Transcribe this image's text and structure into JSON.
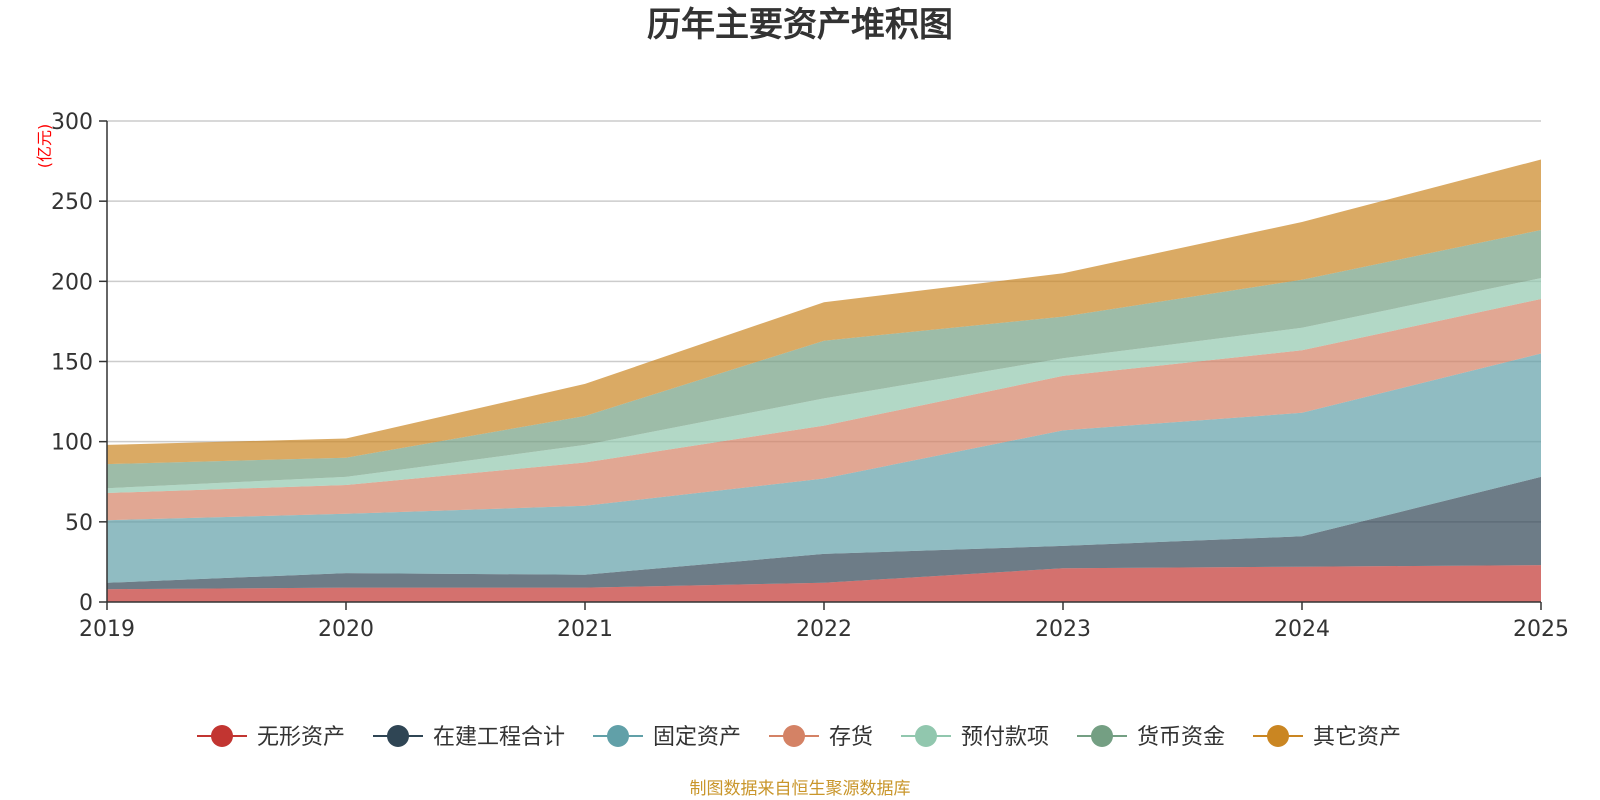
{
  "chart_data": {
    "type": "area",
    "stacked": true,
    "title": "历年主要资产堆积图",
    "ylabel": "(亿元)",
    "xlabel": "",
    "categories": [
      "2019",
      "2020",
      "2021",
      "2022",
      "2023",
      "2024",
      "2025"
    ],
    "ylim": [
      0,
      300
    ],
    "yticks": [
      0,
      50,
      100,
      150,
      200,
      250,
      300
    ],
    "grid": true,
    "legend_position": "bottom",
    "series": [
      {
        "name": "无形资产",
        "color": "#c23531",
        "values": [
          8,
          9,
          9,
          12,
          21,
          22,
          23
        ]
      },
      {
        "name": "在建工程合计",
        "color": "#2f4554",
        "values": [
          4,
          9,
          8,
          18,
          14,
          19,
          55
        ]
      },
      {
        "name": "固定资产",
        "color": "#61a0a8",
        "values": [
          39,
          37,
          43,
          47,
          72,
          77,
          77
        ]
      },
      {
        "name": "存货",
        "color": "#d48265",
        "values": [
          17,
          18,
          27,
          33,
          34,
          39,
          34
        ]
      },
      {
        "name": "预付款项",
        "color": "#91c7ae",
        "values": [
          3,
          5,
          11,
          17,
          11,
          14,
          13
        ]
      },
      {
        "name": "货币资金",
        "color": "#749f83",
        "values": [
          15,
          12,
          18,
          36,
          26,
          30,
          30
        ]
      },
      {
        "name": "其它资产",
        "color": "#ca8622",
        "values": [
          12,
          12,
          20,
          24,
          27,
          36,
          44
        ]
      }
    ],
    "source": "制图数据来自恒生聚源数据库"
  },
  "colors": {
    "title": "#333333",
    "axis": "#333333",
    "grid": "#cccccc",
    "unit": "#ff0000",
    "source": "#c9962b"
  }
}
